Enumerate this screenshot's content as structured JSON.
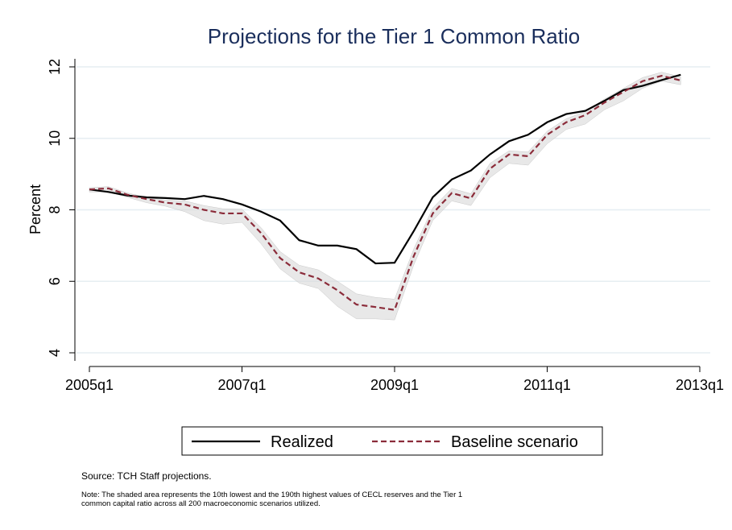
{
  "chart_data": {
    "type": "line",
    "title": "Projections for the Tier 1 Common Ratio",
    "ylabel": "Percent",
    "source": "Source: TCH Staff projections.",
    "note": [
      "Note: The shaded area represents the 10th lowest and the 190th highest values of CECL reserves and the Tier 1",
      "common capital ratio across all 200 macroeconomic scenarios utilized."
    ],
    "x": [
      "2005q1",
      "2005q2",
      "2005q3",
      "2005q4",
      "2006q1",
      "2006q2",
      "2006q3",
      "2006q4",
      "2007q1",
      "2007q2",
      "2007q3",
      "2007q4",
      "2008q1",
      "2008q2",
      "2008q3",
      "2008q4",
      "2009q1",
      "2009q2",
      "2009q3",
      "2009q4",
      "2010q1",
      "2010q2",
      "2010q3",
      "2010q4",
      "2011q1",
      "2011q2",
      "2011q3",
      "2011q4",
      "2012q1",
      "2012q2",
      "2012q3",
      "2012q4"
    ],
    "xlim": [
      "2005q1",
      "2013q1"
    ],
    "xticks": [
      "2005q1",
      "2007q1",
      "2009q1",
      "2011q1",
      "2013q1"
    ],
    "ylim": [
      4,
      12
    ],
    "yticks": [
      4,
      6,
      8,
      10,
      12
    ],
    "grid": true,
    "series": [
      {
        "name": "Realized",
        "color": "#000000",
        "dash": false,
        "values": [
          8.57,
          8.5,
          8.4,
          8.35,
          8.33,
          8.3,
          8.39,
          8.3,
          8.15,
          7.95,
          7.7,
          7.15,
          7.0,
          7.0,
          6.9,
          6.5,
          6.52,
          7.4,
          8.35,
          8.85,
          9.1,
          9.55,
          9.92,
          10.1,
          10.45,
          10.68,
          10.77,
          11.05,
          11.35,
          11.47,
          11.63,
          11.78
        ]
      },
      {
        "name": "Baseline scenario",
        "color": "#8b2c3a",
        "dash": true,
        "values": [
          8.57,
          8.6,
          8.42,
          8.3,
          8.2,
          8.15,
          8.0,
          7.9,
          7.9,
          7.35,
          6.65,
          6.25,
          6.08,
          5.75,
          5.35,
          5.28,
          5.2,
          6.7,
          7.9,
          8.47,
          8.32,
          9.15,
          9.55,
          9.5,
          10.1,
          10.45,
          10.65,
          11.0,
          11.3,
          11.6,
          11.75,
          11.62
        ]
      }
    ],
    "band": {
      "color": "#d9d9d9",
      "lower": [
        8.5,
        8.5,
        8.35,
        8.2,
        8.1,
        7.95,
        7.7,
        7.6,
        7.65,
        7.05,
        6.35,
        5.95,
        5.8,
        5.3,
        4.95,
        4.95,
        4.92,
        6.45,
        7.7,
        8.25,
        8.12,
        8.9,
        9.3,
        9.25,
        9.85,
        10.25,
        10.4,
        10.8,
        11.05,
        11.4,
        11.6,
        11.5
      ],
      "upper": [
        8.62,
        8.65,
        8.47,
        8.35,
        8.27,
        8.25,
        8.12,
        8.03,
        8.02,
        7.5,
        6.83,
        6.45,
        6.32,
        6.0,
        5.65,
        5.55,
        5.5,
        6.9,
        8.05,
        8.6,
        8.45,
        9.3,
        9.65,
        9.62,
        10.2,
        10.55,
        10.75,
        11.1,
        11.4,
        11.7,
        11.85,
        11.72
      ]
    }
  }
}
